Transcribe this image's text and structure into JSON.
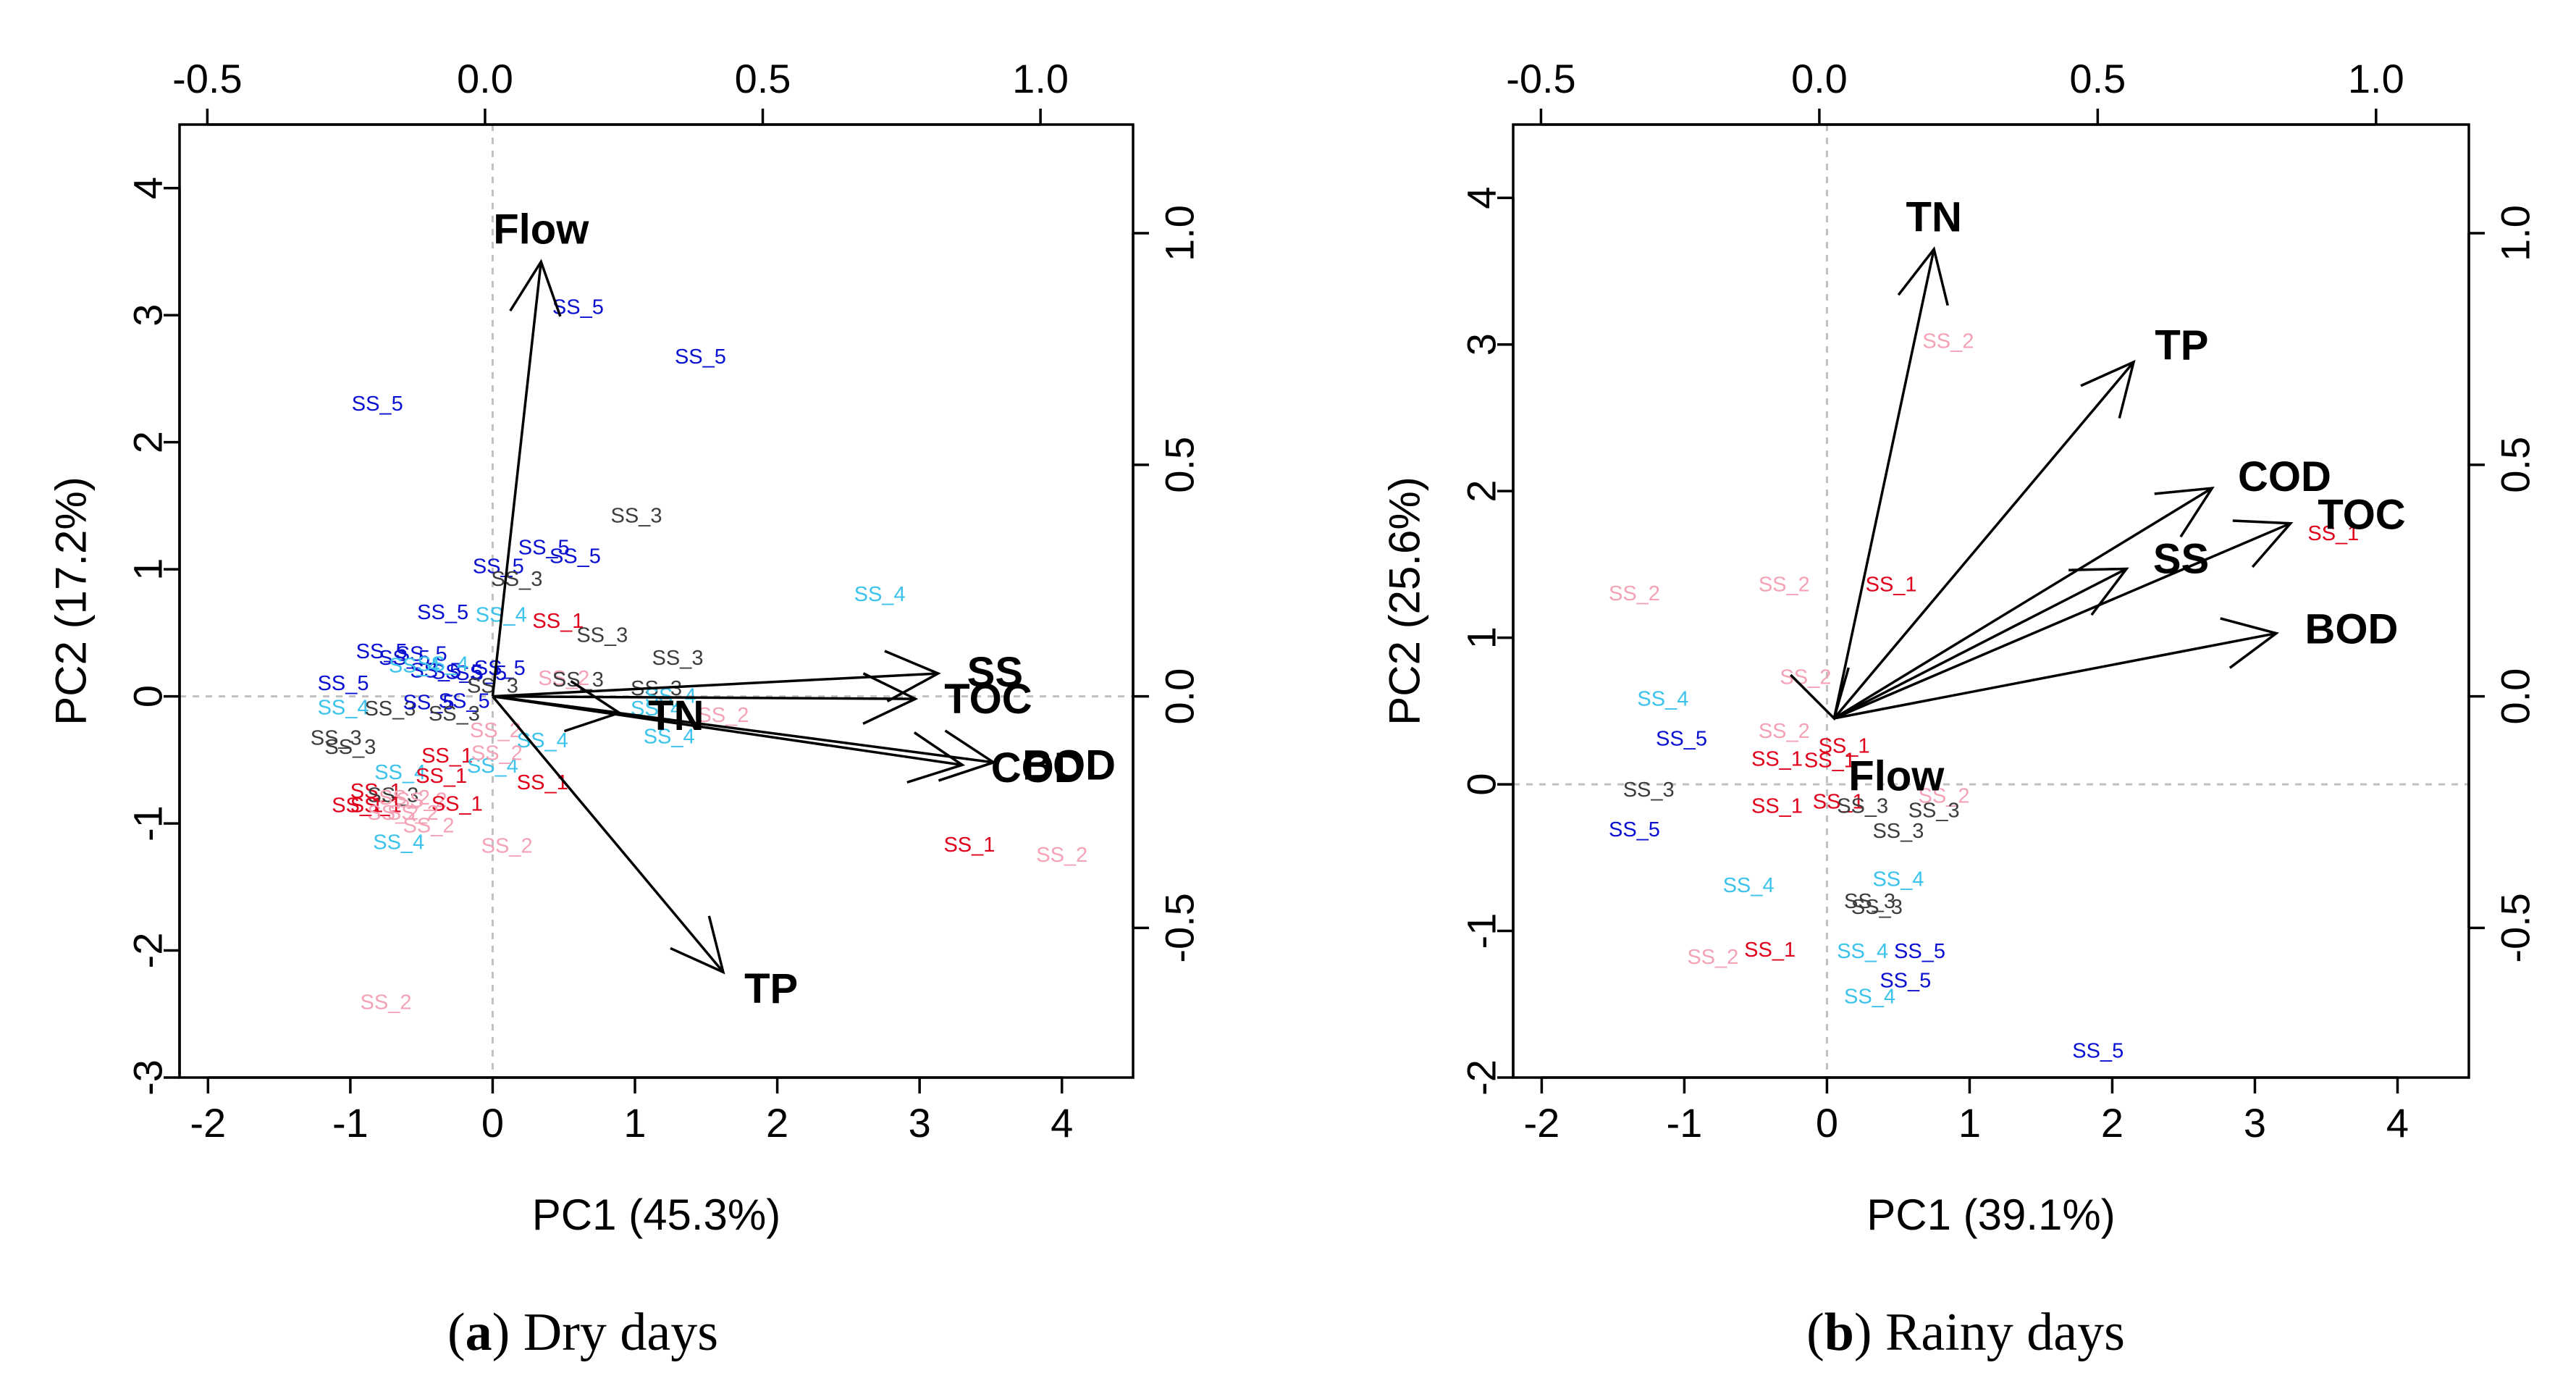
{
  "figure": {
    "panels": [
      {
        "id": "a",
        "caption_letter": "a",
        "caption_text": ") Dry days",
        "caption_open": "("
      },
      {
        "id": "b",
        "caption_letter": "b",
        "caption_text": ") Rainy days",
        "caption_open": "("
      }
    ]
  },
  "colors": {
    "SS_1": "#e0001b",
    "SS_2": "#f4a3b6",
    "SS_3": "#3d3d3d",
    "SS_4": "#3cc3ec",
    "SS_5": "#0a10d0",
    "axis": "#000000",
    "zero_line": "#c0c0c0"
  },
  "chart_data": [
    {
      "type": "scatter",
      "subtype": "biplot",
      "title": "",
      "caption": "(a) Dry days",
      "xlabel": "PC1 (45.3%)",
      "ylabel": "PC2 (17.2%)",
      "xlim": [
        -2.2,
        4.5
      ],
      "ylim": [
        -3.0,
        4.5
      ],
      "xticks": [
        -2,
        -1,
        0,
        1,
        2,
        3,
        4
      ],
      "yticks": [
        -3,
        -2,
        -1,
        0,
        1,
        2,
        3,
        4
      ],
      "top_axis": {
        "lim": [
          -0.55,
          1.1667
        ],
        "ticks": [
          -0.5,
          0.0,
          0.5,
          1.0
        ],
        "labels": [
          "-0.5",
          "0.0",
          "0.5",
          "1.0"
        ]
      },
      "right_axis": {
        "lim": [
          -0.8231,
          1.2346
        ],
        "ticks": [
          -0.5,
          0.0,
          0.5,
          1.0
        ],
        "labels": [
          "-0.5",
          "0.0",
          "0.5",
          "1.0"
        ]
      },
      "grid": false,
      "zero_lines": true,
      "loadings": [
        {
          "name": "Flow",
          "x": 0.34,
          "y": 3.42
        },
        {
          "name": "SS",
          "x": 3.13,
          "y": 0.18
        },
        {
          "name": "TOC",
          "x": 2.97,
          "y": -0.02
        },
        {
          "name": "BOD",
          "x": 3.52,
          "y": -0.52
        },
        {
          "name": "COD",
          "x": 3.3,
          "y": -0.54
        },
        {
          "name": "TN",
          "x": 0.89,
          "y": -0.13
        },
        {
          "name": "TP",
          "x": 1.62,
          "y": -2.17
        }
      ],
      "scores": [
        {
          "label": "SS_5",
          "x": 0.6,
          "y": 3.06
        },
        {
          "label": "SS_5",
          "x": 1.46,
          "y": 2.67
        },
        {
          "label": "SS_5",
          "x": -0.81,
          "y": 2.3
        },
        {
          "label": "SS_3",
          "x": 1.01,
          "y": 1.42
        },
        {
          "label": "SS_5",
          "x": 0.36,
          "y": 1.17
        },
        {
          "label": "SS_5",
          "x": 0.58,
          "y": 1.1
        },
        {
          "label": "SS_5",
          "x": 0.04,
          "y": 1.02
        },
        {
          "label": "SS_3",
          "x": 0.17,
          "y": 0.92
        },
        {
          "label": "SS_4",
          "x": 2.72,
          "y": 0.8
        },
        {
          "label": "SS_5",
          "x": -0.35,
          "y": 0.66
        },
        {
          "label": "SS_4",
          "x": 0.06,
          "y": 0.64
        },
        {
          "label": "SS_1",
          "x": 0.46,
          "y": 0.59
        },
        {
          "label": "SS_3",
          "x": 0.77,
          "y": 0.48
        },
        {
          "label": "SS_3",
          "x": 1.3,
          "y": 0.3
        },
        {
          "label": "SS_5",
          "x": -0.78,
          "y": 0.35
        },
        {
          "label": "SS_5",
          "x": -0.62,
          "y": 0.3
        },
        {
          "label": "SS_5",
          "x": -0.5,
          "y": 0.33
        },
        {
          "label": "SS_5",
          "x": -0.4,
          "y": 0.2
        },
        {
          "label": "SS_5",
          "x": -0.25,
          "y": 0.19
        },
        {
          "label": "SS_5",
          "x": -0.08,
          "y": 0.18
        },
        {
          "label": "SS_5",
          "x": 0.05,
          "y": 0.22
        },
        {
          "label": "SS_4",
          "x": -0.55,
          "y": 0.24
        },
        {
          "label": "SS_4",
          "x": -0.35,
          "y": 0.25
        },
        {
          "label": "SS_5",
          "x": -1.05,
          "y": 0.1
        },
        {
          "label": "SS_2",
          "x": 0.5,
          "y": 0.14
        },
        {
          "label": "SS_3",
          "x": 0.6,
          "y": 0.13
        },
        {
          "label": "SS_3",
          "x": 1.15,
          "y": 0.06
        },
        {
          "label": "SS_4",
          "x": 1.25,
          "y": 0.0
        },
        {
          "label": "SS_4",
          "x": 1.15,
          "y": -0.1
        },
        {
          "label": "SS_3",
          "x": 0.0,
          "y": 0.08
        },
        {
          "label": "SS_4",
          "x": -1.05,
          "y": -0.09
        },
        {
          "label": "SS_3",
          "x": -0.72,
          "y": -0.1
        },
        {
          "label": "SS_5",
          "x": -0.45,
          "y": -0.05
        },
        {
          "label": "SS_5",
          "x": -0.2,
          "y": -0.04
        },
        {
          "label": "SS_3",
          "x": -0.27,
          "y": -0.14
        },
        {
          "label": "SS_2",
          "x": 1.62,
          "y": -0.15
        },
        {
          "label": "SS_4",
          "x": 1.24,
          "y": -0.32
        },
        {
          "label": "SS_3",
          "x": -1.1,
          "y": -0.33
        },
        {
          "label": "SS_3",
          "x": -1.0,
          "y": -0.4
        },
        {
          "label": "SS_2",
          "x": 0.02,
          "y": -0.27
        },
        {
          "label": "SS_4",
          "x": 0.35,
          "y": -0.35
        },
        {
          "label": "SS_1",
          "x": -0.32,
          "y": -0.47
        },
        {
          "label": "SS_4",
          "x": 0.0,
          "y": -0.55
        },
        {
          "label": "SS_2",
          "x": 0.03,
          "y": -0.45
        },
        {
          "label": "SS_4",
          "x": -0.65,
          "y": -0.6
        },
        {
          "label": "SS_1",
          "x": -0.36,
          "y": -0.63
        },
        {
          "label": "SS_1",
          "x": 0.35,
          "y": -0.68
        },
        {
          "label": "SS_1",
          "x": -0.82,
          "y": -0.75
        },
        {
          "label": "SS_3",
          "x": -0.7,
          "y": -0.78
        },
        {
          "label": "SS_2",
          "x": -0.62,
          "y": -0.8
        },
        {
          "label": "SS_2",
          "x": -0.5,
          "y": -0.82
        },
        {
          "label": "SS_1",
          "x": -0.25,
          "y": -0.85
        },
        {
          "label": "SS_1",
          "x": -0.95,
          "y": -0.86
        },
        {
          "label": "SS_1",
          "x": -0.82,
          "y": -0.86
        },
        {
          "label": "SS_2",
          "x": -0.7,
          "y": -0.92
        },
        {
          "label": "SS_2",
          "x": -0.56,
          "y": -0.92
        },
        {
          "label": "SS_2",
          "x": -0.45,
          "y": -1.02
        },
        {
          "label": "SS_4",
          "x": -0.66,
          "y": -1.15
        },
        {
          "label": "SS_2",
          "x": 0.1,
          "y": -1.18
        },
        {
          "label": "SS_1",
          "x": 3.35,
          "y": -1.17
        },
        {
          "label": "SS_2",
          "x": 4.0,
          "y": -1.25
        },
        {
          "label": "SS_2",
          "x": -0.75,
          "y": -2.41
        }
      ]
    },
    {
      "type": "scatter",
      "subtype": "biplot",
      "title": "",
      "caption": "(b) Rainy days",
      "xlabel": "PC1 (39.1%)",
      "ylabel": "PC2 (25.6%)",
      "xlim": [
        -2.2,
        4.5
      ],
      "ylim": [
        -2.0,
        4.5
      ],
      "xticks": [
        -2,
        -1,
        0,
        1,
        2,
        3,
        4
      ],
      "yticks": [
        -2,
        -1,
        0,
        1,
        2,
        3,
        4
      ],
      "top_axis": {
        "lim": [
          -0.55,
          1.1667
        ],
        "ticks": [
          -0.5,
          0.0,
          0.5,
          1.0
        ],
        "labels": [
          "-0.5",
          "0.0",
          "0.5",
          "1.0"
        ]
      },
      "right_axis": {
        "lim": [
          -0.8231,
          1.2346
        ],
        "ticks": [
          -0.5,
          0.0,
          0.5,
          1.0
        ],
        "labels": [
          "-0.5",
          "0.0",
          "0.5",
          "1.0"
        ]
      },
      "grid": false,
      "zero_lines": true,
      "loading_origin": {
        "x": 0.05,
        "y": 0.45
      },
      "loadings": [
        {
          "name": "TN",
          "x": 0.75,
          "y": 3.65
        },
        {
          "name": "TP",
          "x": 2.15,
          "y": 2.88
        },
        {
          "name": "COD",
          "x": 2.7,
          "y": 2.02
        },
        {
          "name": "TOC",
          "x": 3.25,
          "y": 1.78
        },
        {
          "name": "SS",
          "x": 2.1,
          "y": 1.47
        },
        {
          "name": "BOD",
          "x": 3.15,
          "y": 1.03
        },
        {
          "name": "Flow",
          "x": 0.08,
          "y": 0.45
        }
      ],
      "scores": [
        {
          "label": "SS_2",
          "x": 0.85,
          "y": 3.02
        },
        {
          "label": "SS_1",
          "x": 3.55,
          "y": 1.71
        },
        {
          "label": "SS_2",
          "x": -1.35,
          "y": 1.3
        },
        {
          "label": "SS_2",
          "x": -0.3,
          "y": 1.36
        },
        {
          "label": "SS_1",
          "x": 0.45,
          "y": 1.36
        },
        {
          "label": "SS_2",
          "x": -0.15,
          "y": 0.73
        },
        {
          "label": "SS_4",
          "x": -1.15,
          "y": 0.58
        },
        {
          "label": "SS_5",
          "x": -1.02,
          "y": 0.31
        },
        {
          "label": "SS_2",
          "x": -0.3,
          "y": 0.36
        },
        {
          "label": "SS_1",
          "x": -0.35,
          "y": 0.17
        },
        {
          "label": "SS_1",
          "x": 0.12,
          "y": 0.26
        },
        {
          "label": "SS_1",
          "x": 0.02,
          "y": 0.16
        },
        {
          "label": "SS_3",
          "x": -1.25,
          "y": -0.04
        },
        {
          "label": "SS_2",
          "x": 0.82,
          "y": -0.08
        },
        {
          "label": "SS_3",
          "x": 0.75,
          "y": -0.18
        },
        {
          "label": "SS_1",
          "x": -0.35,
          "y": -0.15
        },
        {
          "label": "SS_1",
          "x": 0.08,
          "y": -0.12
        },
        {
          "label": "SS_3",
          "x": 0.25,
          "y": -0.15
        },
        {
          "label": "SS_3",
          "x": 0.5,
          "y": -0.32
        },
        {
          "label": "SS_5",
          "x": -1.35,
          "y": -0.31
        },
        {
          "label": "SS_4",
          "x": -0.55,
          "y": -0.69
        },
        {
          "label": "SS_4",
          "x": 0.5,
          "y": -0.65
        },
        {
          "label": "SS_3",
          "x": 0.3,
          "y": -0.8
        },
        {
          "label": "SS_3",
          "x": 0.35,
          "y": -0.84
        },
        {
          "label": "SS_2",
          "x": -0.8,
          "y": -1.18
        },
        {
          "label": "SS_1",
          "x": -0.4,
          "y": -1.13
        },
        {
          "label": "SS_4",
          "x": 0.25,
          "y": -1.14
        },
        {
          "label": "SS_5",
          "x": 0.65,
          "y": -1.14
        },
        {
          "label": "SS_5",
          "x": 0.55,
          "y": -1.34
        },
        {
          "label": "SS_4",
          "x": 0.3,
          "y": -1.45
        },
        {
          "label": "SS_5",
          "x": 1.9,
          "y": -1.82
        }
      ]
    }
  ]
}
